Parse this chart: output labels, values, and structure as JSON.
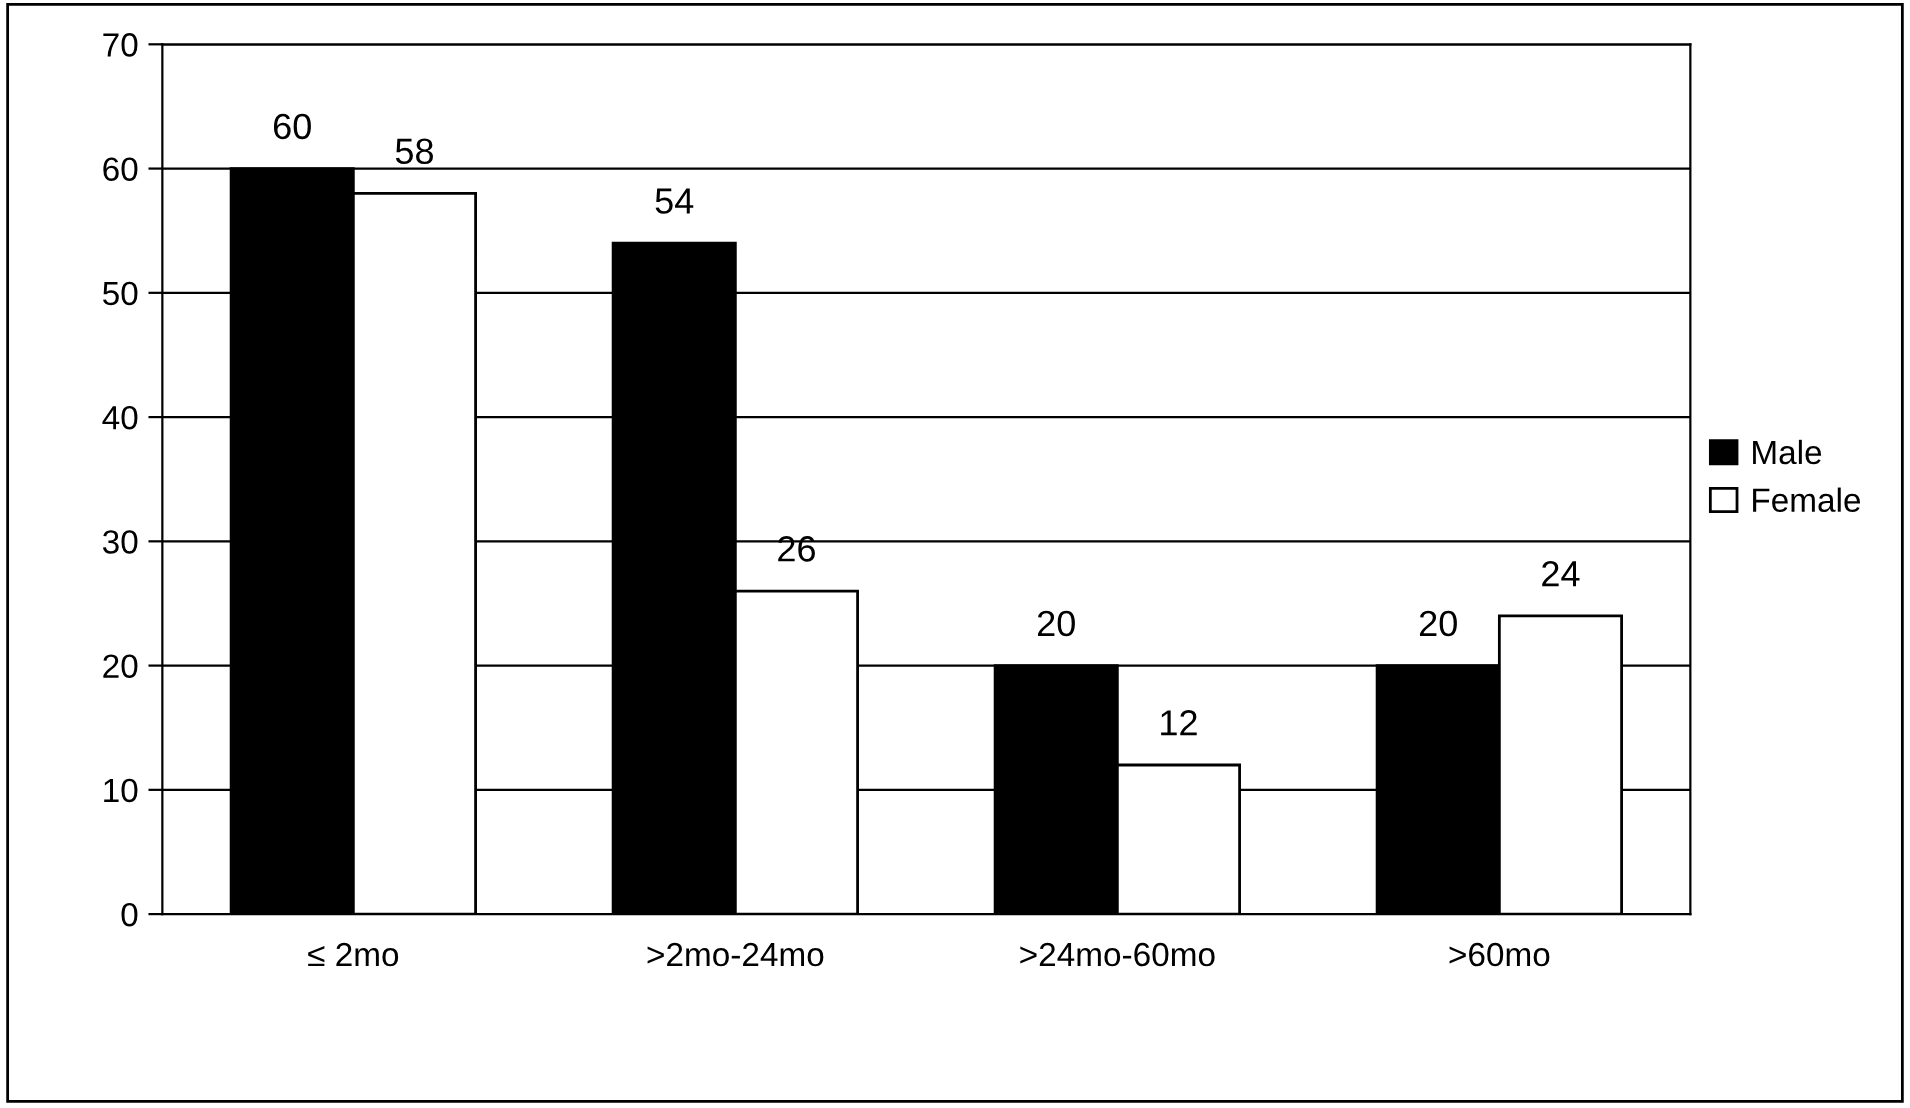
{
  "chart_data": {
    "type": "bar",
    "categories": [
      "≤ 2mo",
      ">2mo-24mo",
      ">24mo-60mo",
      ">60mo"
    ],
    "series": [
      {
        "name": "Male",
        "color": "#000000",
        "values": [
          60,
          54,
          20,
          20
        ]
      },
      {
        "name": "Female",
        "color": "#ffffff",
        "values": [
          58,
          26,
          12,
          24
        ]
      }
    ],
    "ylim": [
      0,
      70
    ],
    "yticks": [
      0,
      10,
      20,
      30,
      40,
      50,
      60,
      70
    ],
    "grid": "y",
    "legend": "right",
    "data_labels": true
  }
}
